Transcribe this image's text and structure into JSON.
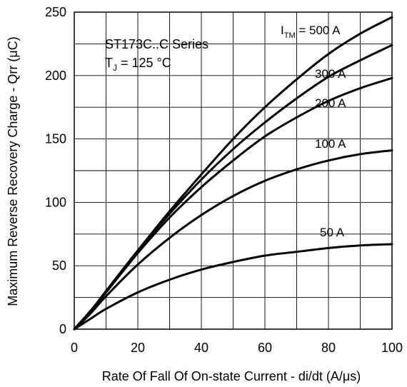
{
  "chart_data": {
    "type": "line",
    "title": "",
    "xlabel": "Rate Of Fall Of On-state Current - di/dt (A/μs)",
    "ylabel": "Maximum Reverse Recovery Charge - Qrr (μC)",
    "xlim": [
      0,
      100
    ],
    "ylim": [
      0,
      250
    ],
    "x_ticks": [
      0,
      20,
      40,
      60,
      80,
      100
    ],
    "y_ticks": [
      0,
      50,
      100,
      150,
      200,
      250
    ],
    "x_grid_step": 10,
    "y_grid_step": 25,
    "grid": true,
    "annotation_lines": [
      "ST173C..C Series",
      "T_J = 125 °C"
    ],
    "series": [
      {
        "name": "I_TM = 500 A",
        "x": [
          0,
          5,
          10,
          20,
          30,
          40,
          50,
          60,
          70,
          80,
          90,
          100
        ],
        "y": [
          0,
          14,
          30,
          62,
          93,
          122,
          150,
          175,
          197,
          217,
          233,
          246
        ]
      },
      {
        "name": "300 A",
        "x": [
          0,
          5,
          10,
          20,
          30,
          40,
          50,
          60,
          70,
          80,
          90,
          100
        ],
        "y": [
          0,
          14,
          30,
          62,
          91,
          118,
          142,
          163,
          182,
          199,
          212,
          224
        ]
      },
      {
        "name": "200 A",
        "x": [
          0,
          5,
          10,
          20,
          30,
          40,
          50,
          60,
          70,
          80,
          90,
          100
        ],
        "y": [
          0,
          14,
          29,
          60,
          88,
          112,
          133,
          152,
          167,
          180,
          190,
          198
        ]
      },
      {
        "name": "100 A",
        "x": [
          0,
          5,
          10,
          20,
          30,
          40,
          50,
          60,
          70,
          80,
          90,
          100
        ],
        "y": [
          0,
          12,
          26,
          51,
          72,
          90,
          105,
          117,
          126,
          133,
          138,
          141
        ]
      },
      {
        "name": "50 A",
        "x": [
          0,
          5,
          10,
          20,
          30,
          40,
          50,
          60,
          70,
          80,
          90,
          100
        ],
        "y": [
          0,
          8,
          16,
          29,
          39,
          47,
          53,
          58,
          61,
          64,
          66,
          67
        ]
      }
    ]
  }
}
